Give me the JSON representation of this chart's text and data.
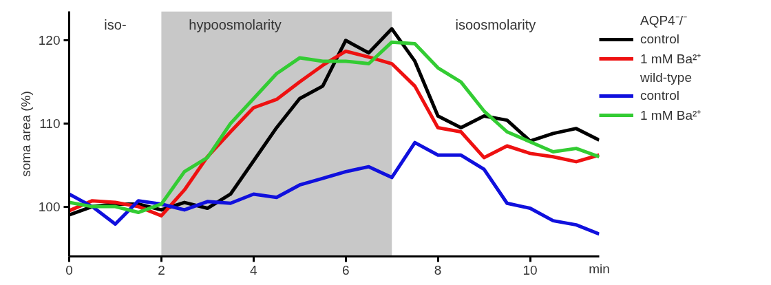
{
  "chart_data": {
    "type": "line",
    "ylabel": "soma area (%)",
    "xlabel": "min",
    "x": [
      0,
      0.5,
      1,
      1.5,
      2,
      2.5,
      3,
      3.5,
      4,
      4.5,
      5,
      5.5,
      6,
      6.5,
      7,
      7.5,
      8,
      8.5,
      9,
      9.5,
      10,
      10.5,
      11,
      11.5
    ],
    "series": [
      {
        "name": "control",
        "color": "#000000",
        "values": [
          99,
          100,
          100.3,
          100.3,
          99.6,
          100.5,
          99.8,
          101.5,
          105.5,
          109.5,
          113,
          114.5,
          120,
          118.5,
          121.4,
          117.5,
          110.9,
          109.5,
          110.9,
          110.4,
          107.9,
          108.8,
          109.4,
          108
        ]
      },
      {
        "name": "1 mM Ba²⁺",
        "color": "#ee1111",
        "values": [
          99.5,
          100.7,
          100.5,
          100,
          98.9,
          102,
          106,
          109,
          111.9,
          112.9,
          115,
          117,
          118.7,
          118,
          117.2,
          114.5,
          109.5,
          109,
          105.9,
          107.3,
          106.4,
          106,
          105.4,
          106.2
        ]
      },
      {
        "name": "control",
        "color": "#1010dd",
        "values": [
          101.5,
          100,
          97.9,
          100.7,
          100.3,
          99.6,
          100.6,
          100.4,
          101.5,
          101.1,
          102.6,
          103.4,
          104.2,
          104.8,
          103.5,
          107.7,
          106.2,
          106.2,
          104.5,
          100.4,
          99.8,
          98.3,
          97.8,
          96.7
        ]
      },
      {
        "name": "1 mM Ba²⁺",
        "color": "#33cc33",
        "values": [
          100.5,
          100,
          100,
          99.3,
          100.3,
          104.2,
          105.9,
          110,
          113,
          116,
          117.9,
          117.5,
          117.5,
          117.2,
          119.8,
          119.6,
          116.7,
          115,
          111.5,
          109,
          107.8,
          106.6,
          107,
          106
        ]
      }
    ],
    "legend_title": [
      "AQP4⁻/⁻",
      "wild-type"
    ],
    "legend": "right",
    "bands": [
      {
        "axis": "x",
        "from": 2,
        "to": 7,
        "label": "hypoosmolarity",
        "color": "#c8c8c8"
      }
    ],
    "annotations": [
      "iso-",
      "isoosmolarity"
    ],
    "xlim": [
      0,
      11.5
    ],
    "ylim": [
      94,
      123.5
    ],
    "xticks": [
      0,
      2,
      4,
      6,
      8,
      10
    ],
    "yticks": [
      100,
      110,
      120
    ],
    "grid": false,
    "marker": "none",
    "line_style": "solid"
  }
}
